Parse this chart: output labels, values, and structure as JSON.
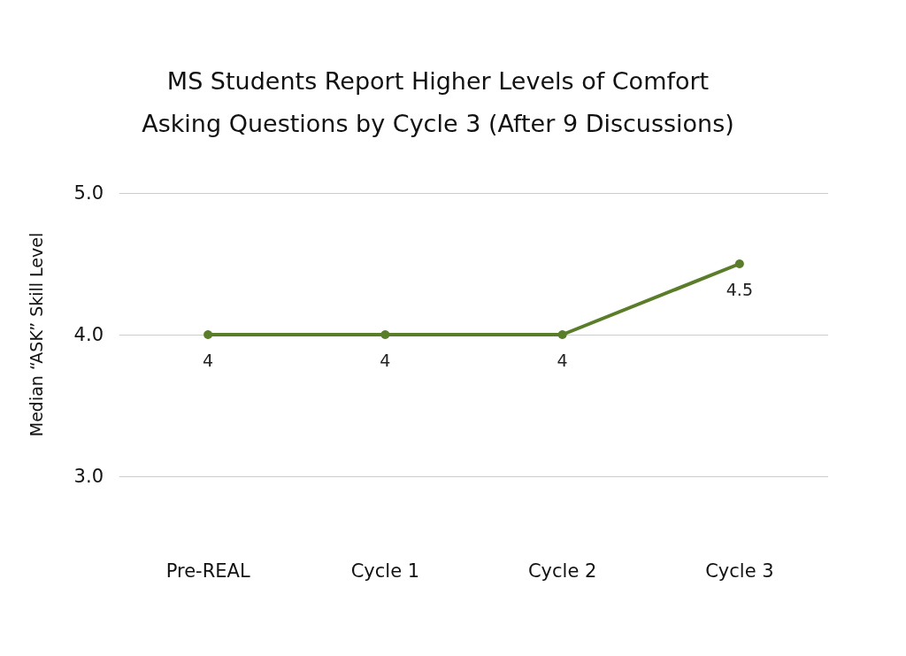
{
  "chart_data": {
    "type": "line",
    "title": "MS Students Report Higher Levels of Comfort\nAsking Questions by Cycle 3 (After 9 Discussions)",
    "ylabel": "Median “ASK” Skill Level",
    "categories": [
      "Pre-REAL",
      "Cycle 1",
      "Cycle 2",
      "Cycle 3"
    ],
    "series": [
      {
        "color": "#5a7d2a",
        "values": [
          4,
          4,
          4,
          4.5
        ]
      }
    ],
    "ylim": [
      3,
      5
    ],
    "yticks": [
      {
        "value": 3,
        "label": "3.0"
      },
      {
        "value": 4,
        "label": "4.0"
      },
      {
        "value": 5,
        "label": "5.0"
      }
    ],
    "grid": "y",
    "marker": "circle",
    "line_style": "solid",
    "data_labels": true
  }
}
